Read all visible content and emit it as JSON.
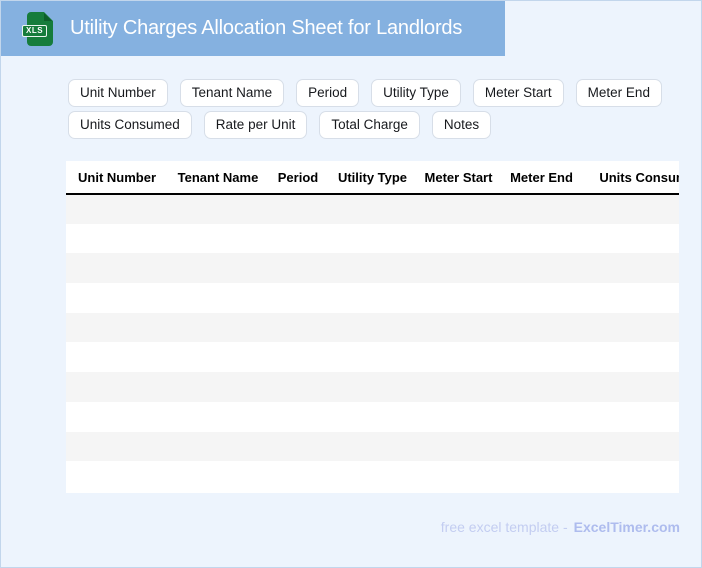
{
  "header": {
    "title": "Utility Charges Allocation Sheet for Landlords",
    "file_badge": "XLS"
  },
  "chips": [
    {
      "label": "Unit Number"
    },
    {
      "label": "Tenant Name"
    },
    {
      "label": "Period"
    },
    {
      "label": "Utility Type"
    },
    {
      "label": "Meter Start"
    },
    {
      "label": "Meter End"
    },
    {
      "label": "Units Consumed"
    },
    {
      "label": "Rate per Unit"
    },
    {
      "label": "Total Charge"
    },
    {
      "label": "Notes"
    }
  ],
  "table": {
    "columns": [
      "Unit Number",
      "Tenant Name",
      "Period",
      "Utility Type",
      "Meter Start",
      "Meter End",
      "Units Consumed"
    ],
    "row_count": 10,
    "rows_are_empty": true
  },
  "footer": {
    "prefix": "free excel template -",
    "brand": "ExcelTimer.com"
  },
  "colors": {
    "banner_blue": "#85b1e0",
    "page_background": "#edf4fd",
    "icon_green": "#167c3b",
    "row_stripe": "#f5f5f5",
    "footer_text": "#c3cdf1",
    "footer_brand": "#aebcee"
  }
}
